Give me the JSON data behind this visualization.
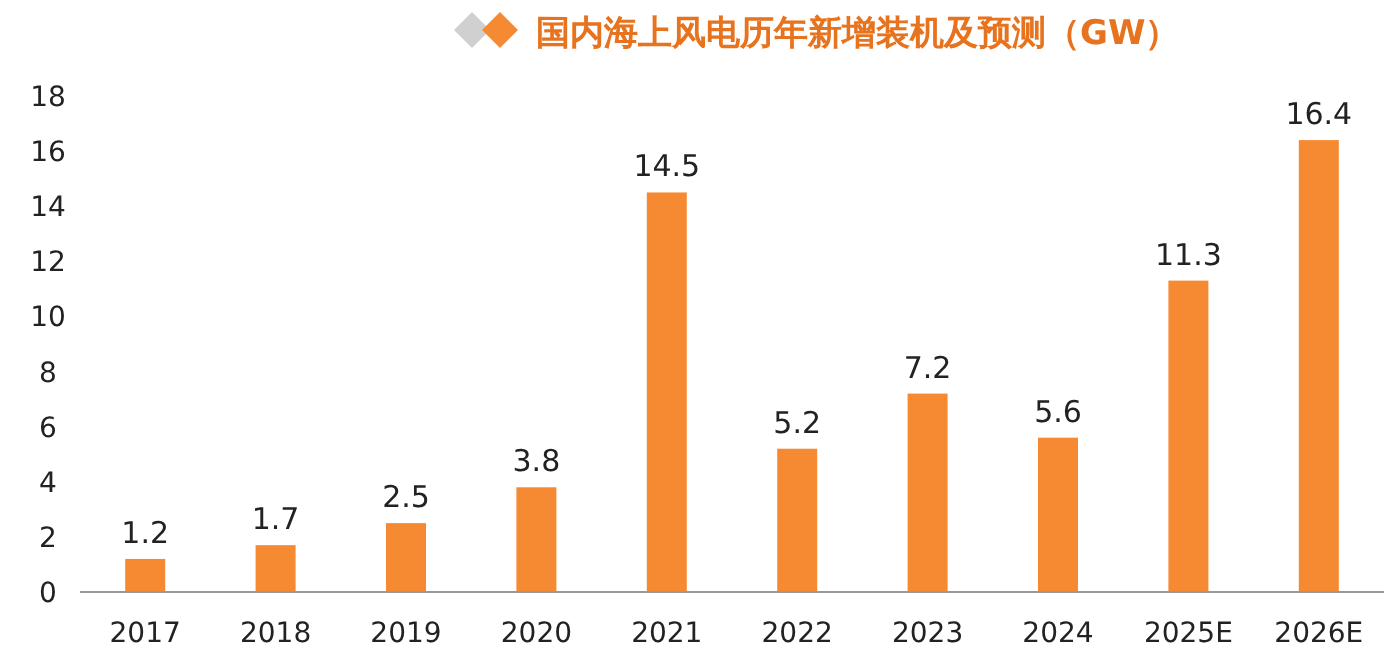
{
  "chart_data": {
    "type": "bar",
    "title": "国内海上风电历年新增装机及预测（GW）",
    "categories": [
      "2017",
      "2018",
      "2019",
      "2020",
      "2021",
      "2022",
      "2023",
      "2024",
      "2025E",
      "2026E"
    ],
    "values": [
      1.2,
      1.7,
      2.5,
      3.8,
      14.5,
      5.2,
      7.2,
      5.6,
      11.3,
      16.4
    ],
    "color": "#f68a32",
    "ylim": [
      0,
      18
    ],
    "yticks": [
      0,
      2,
      4,
      6,
      8,
      10,
      12,
      14,
      16,
      18
    ],
    "grid": false,
    "data_labels": true
  }
}
